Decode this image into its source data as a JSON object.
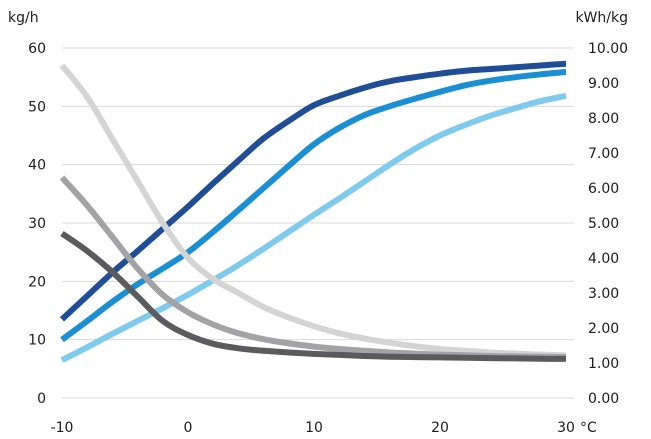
{
  "chart_data": {
    "type": "line",
    "title": "",
    "xlabel": "",
    "ylabel": "",
    "x_unit": "°C",
    "y_left_unit": "kg/h",
    "y_right_unit": "kWh/kg",
    "xlim": [
      -10,
      30
    ],
    "y_left_lim": [
      0,
      60
    ],
    "y_right_lim": [
      0,
      10
    ],
    "grid": true,
    "x_ticks": [
      "-10",
      "0",
      "10",
      "20",
      "30"
    ],
    "y_left_ticks": [
      "0",
      "10",
      "20",
      "30",
      "40",
      "50",
      "60"
    ],
    "y_right_ticks": [
      "0.00",
      "1.00",
      "2.00",
      "3.00",
      "4.00",
      "5.00",
      "6.00",
      "7.00",
      "8.00",
      "9.00",
      "10.00"
    ],
    "series": [
      {
        "axis": "left",
        "color": "#1f4e96",
        "points": [
          [
            -10,
            13.5
          ],
          [
            -8,
            17.5
          ],
          [
            -6,
            21.5
          ],
          [
            -4,
            25.2
          ],
          [
            -2,
            29.0
          ],
          [
            0,
            32.8
          ],
          [
            2,
            36.8
          ],
          [
            4,
            40.7
          ],
          [
            6,
            44.5
          ],
          [
            8,
            47.5
          ],
          [
            10,
            50.2
          ],
          [
            12,
            51.8
          ],
          [
            14,
            53.2
          ],
          [
            16,
            54.3
          ],
          [
            18,
            55.0
          ],
          [
            20,
            55.6
          ],
          [
            22,
            56.1
          ],
          [
            24,
            56.4
          ],
          [
            26,
            56.7
          ],
          [
            28,
            57.0
          ],
          [
            30,
            57.3
          ]
        ]
      },
      {
        "axis": "left",
        "color": "#1a8fd3",
        "points": [
          [
            -10,
            10.0
          ],
          [
            -8,
            13.2
          ],
          [
            -6,
            16.5
          ],
          [
            -4,
            19.5
          ],
          [
            -2,
            22.2
          ],
          [
            0,
            25.0
          ],
          [
            2,
            28.5
          ],
          [
            4,
            32.2
          ],
          [
            6,
            36.0
          ],
          [
            8,
            39.8
          ],
          [
            10,
            43.5
          ],
          [
            12,
            46.3
          ],
          [
            14,
            48.5
          ],
          [
            16,
            50.0
          ],
          [
            18,
            51.3
          ],
          [
            20,
            52.5
          ],
          [
            22,
            53.6
          ],
          [
            24,
            54.4
          ],
          [
            26,
            55.0
          ],
          [
            28,
            55.5
          ],
          [
            30,
            55.9
          ]
        ]
      },
      {
        "axis": "left",
        "color": "#7fcbee",
        "points": [
          [
            -10,
            6.5
          ],
          [
            -8,
            8.7
          ],
          [
            -6,
            11.0
          ],
          [
            -4,
            13.2
          ],
          [
            -2,
            15.4
          ],
          [
            0,
            17.7
          ],
          [
            2,
            20.2
          ],
          [
            4,
            22.8
          ],
          [
            6,
            25.6
          ],
          [
            8,
            28.5
          ],
          [
            10,
            31.4
          ],
          [
            12,
            34.2
          ],
          [
            14,
            37.1
          ],
          [
            16,
            40.0
          ],
          [
            18,
            42.7
          ],
          [
            20,
            45.0
          ],
          [
            22,
            46.8
          ],
          [
            24,
            48.4
          ],
          [
            26,
            49.7
          ],
          [
            28,
            50.9
          ],
          [
            30,
            51.8
          ]
        ]
      },
      {
        "axis": "right",
        "color": "#d4d4d4",
        "points": [
          [
            -10,
            9.5
          ],
          [
            -8,
            8.6
          ],
          [
            -6,
            7.4
          ],
          [
            -4,
            6.2
          ],
          [
            -2,
            5.0
          ],
          [
            0,
            4.0
          ],
          [
            2,
            3.4
          ],
          [
            4,
            3.0
          ],
          [
            6,
            2.6
          ],
          [
            8,
            2.3
          ],
          [
            10,
            2.05
          ],
          [
            12,
            1.85
          ],
          [
            14,
            1.7
          ],
          [
            16,
            1.58
          ],
          [
            18,
            1.48
          ],
          [
            20,
            1.4
          ],
          [
            22,
            1.35
          ],
          [
            24,
            1.3
          ],
          [
            26,
            1.27
          ],
          [
            28,
            1.24
          ],
          [
            30,
            1.22
          ]
        ]
      },
      {
        "axis": "right",
        "color": "#a3a3a5",
        "points": [
          [
            -10,
            6.3
          ],
          [
            -8,
            5.5
          ],
          [
            -6,
            4.6
          ],
          [
            -4,
            3.7
          ],
          [
            -2,
            2.95
          ],
          [
            0,
            2.45
          ],
          [
            2,
            2.1
          ],
          [
            4,
            1.85
          ],
          [
            6,
            1.68
          ],
          [
            8,
            1.56
          ],
          [
            10,
            1.47
          ],
          [
            12,
            1.4
          ],
          [
            14,
            1.35
          ],
          [
            16,
            1.3
          ],
          [
            18,
            1.27
          ],
          [
            20,
            1.24
          ],
          [
            22,
            1.22
          ],
          [
            24,
            1.2
          ],
          [
            26,
            1.19
          ],
          [
            28,
            1.18
          ],
          [
            30,
            1.17
          ]
        ]
      },
      {
        "axis": "right",
        "color": "#5b5b5d",
        "points": [
          [
            -10,
            4.7
          ],
          [
            -8,
            4.2
          ],
          [
            -6,
            3.6
          ],
          [
            -4,
            2.9
          ],
          [
            -2,
            2.2
          ],
          [
            0,
            1.8
          ],
          [
            2,
            1.55
          ],
          [
            4,
            1.42
          ],
          [
            6,
            1.35
          ],
          [
            8,
            1.3
          ],
          [
            10,
            1.26
          ],
          [
            12,
            1.23
          ],
          [
            14,
            1.2
          ],
          [
            16,
            1.18
          ],
          [
            18,
            1.17
          ],
          [
            20,
            1.16
          ],
          [
            22,
            1.15
          ],
          [
            24,
            1.14
          ],
          [
            26,
            1.13
          ],
          [
            28,
            1.12
          ],
          [
            30,
            1.12
          ]
        ]
      }
    ]
  }
}
